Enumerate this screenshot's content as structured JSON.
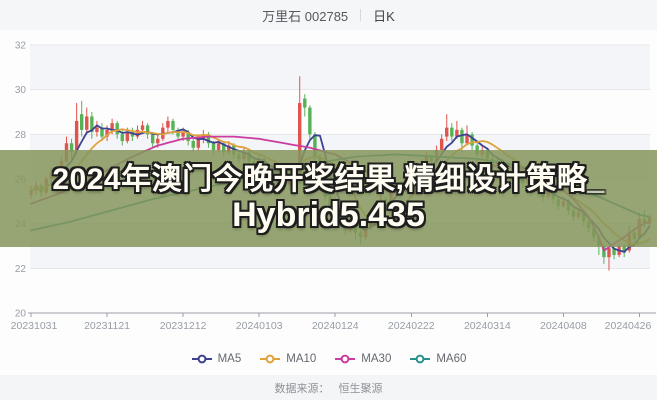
{
  "header": {
    "title": "万里石 002785",
    "period": "日K"
  },
  "overlay": {
    "line1": "2024年澳门今晚开奖结果,精细设计策略_",
    "line2": "Hybrid5.435",
    "band_color": "rgba(133,150,92,0.86)",
    "text_color": "#fffdf2",
    "outline_color": "#1e1e1e"
  },
  "footer": {
    "label": "数据来源：",
    "value": "恒生聚源"
  },
  "legend": {
    "items": [
      {
        "label": "MA5",
        "color": "#3c4191"
      },
      {
        "label": "MA10",
        "color": "#e1a23c"
      },
      {
        "label": "MA30",
        "color": "#cb3c9e"
      },
      {
        "label": "MA60",
        "color": "#27918c"
      }
    ]
  },
  "chart_data": {
    "type": "candlestick",
    "title": "万里石 002785 日K",
    "ylim": [
      20,
      32
    ],
    "y_ticks": [
      32,
      30,
      28,
      26,
      24,
      22,
      20
    ],
    "x_tick_labels": [
      "20231031",
      "20231121",
      "20231212",
      "20240103",
      "20240124",
      "20240222",
      "20240314",
      "20240408",
      "20240426"
    ],
    "x_tick_indices": [
      0,
      15,
      30,
      45,
      60,
      75,
      90,
      105,
      120
    ],
    "grid": true,
    "legend_position": "bottom",
    "colors": {
      "up": "#e0544e",
      "down": "#57b257",
      "grid": "#e4e7ea",
      "axis": "#9aa0a6",
      "label": "#979da5",
      "zebra": "#f3f5f8"
    },
    "candles_ohlc": [
      [
        25.3,
        25.7,
        25.1,
        25.5
      ],
      [
        25.5,
        25.9,
        25.3,
        25.7
      ],
      [
        25.7,
        25.8,
        25.2,
        25.4
      ],
      [
        25.4,
        26.1,
        25.3,
        26.0
      ],
      [
        26.0,
        26.5,
        25.8,
        26.3
      ],
      [
        26.3,
        26.4,
        25.9,
        26.1
      ],
      [
        26.1,
        27.0,
        26.0,
        26.8
      ],
      [
        26.8,
        27.9,
        26.7,
        27.6
      ],
      [
        27.6,
        27.8,
        26.9,
        27.2
      ],
      [
        27.3,
        29.4,
        27.1,
        28.6
      ],
      [
        28.9,
        29.5,
        27.9,
        28.2
      ],
      [
        28.2,
        29.2,
        28.0,
        28.8
      ],
      [
        28.8,
        29.0,
        27.8,
        28.1
      ],
      [
        28.1,
        28.6,
        27.9,
        28.3
      ],
      [
        28.3,
        28.5,
        27.7,
        27.9
      ],
      [
        27.9,
        28.4,
        27.7,
        28.2
      ],
      [
        28.2,
        28.7,
        28.0,
        28.5
      ],
      [
        28.5,
        28.6,
        27.8,
        28.0
      ],
      [
        28.0,
        28.2,
        27.5,
        27.7
      ],
      [
        27.7,
        28.3,
        27.6,
        28.1
      ],
      [
        28.1,
        28.3,
        27.7,
        27.9
      ],
      [
        27.9,
        28.4,
        27.8,
        28.2
      ],
      [
        28.2,
        28.6,
        28.0,
        28.4
      ],
      [
        28.4,
        28.5,
        27.8,
        28.0
      ],
      [
        28.0,
        28.1,
        27.4,
        27.6
      ],
      [
        27.6,
        28.0,
        27.4,
        27.8
      ],
      [
        27.8,
        28.5,
        27.7,
        28.3
      ],
      [
        28.3,
        28.8,
        28.1,
        28.6
      ],
      [
        28.6,
        28.7,
        28.0,
        28.2
      ],
      [
        28.2,
        28.3,
        27.7,
        27.9
      ],
      [
        27.9,
        28.3,
        27.7,
        28.1
      ],
      [
        28.1,
        28.2,
        27.5,
        27.7
      ],
      [
        27.7,
        27.8,
        27.2,
        27.4
      ],
      [
        27.4,
        28.0,
        27.3,
        27.8
      ],
      [
        27.8,
        28.2,
        27.6,
        28.0
      ],
      [
        28.0,
        28.1,
        27.4,
        27.6
      ],
      [
        27.6,
        27.7,
        27.1,
        27.3
      ],
      [
        27.3,
        27.8,
        27.2,
        27.6
      ],
      [
        27.6,
        27.7,
        27.0,
        27.2
      ],
      [
        27.2,
        27.7,
        27.1,
        27.5
      ],
      [
        27.5,
        27.6,
        26.9,
        27.1
      ],
      [
        27.1,
        27.3,
        26.7,
        26.9
      ],
      [
        26.9,
        27.4,
        26.8,
        27.2
      ],
      [
        27.2,
        27.3,
        26.6,
        26.8
      ],
      [
        26.8,
        26.9,
        26.4,
        26.6
      ],
      [
        26.6,
        27.1,
        26.5,
        26.9
      ],
      [
        26.9,
        27.0,
        26.3,
        26.5
      ],
      [
        26.5,
        26.6,
        26.0,
        26.2
      ],
      [
        26.2,
        26.6,
        26.1,
        26.4
      ],
      [
        26.4,
        26.5,
        25.8,
        26.0
      ],
      [
        26.0,
        26.1,
        25.5,
        25.7
      ],
      [
        25.7,
        26.1,
        25.5,
        25.9
      ],
      [
        25.9,
        26.4,
        25.7,
        26.2
      ],
      [
        26.3,
        30.6,
        26.1,
        29.4
      ],
      [
        29.6,
        29.8,
        28.8,
        29.2
      ],
      [
        29.2,
        29.3,
        27.8,
        28.0
      ],
      [
        28.0,
        28.1,
        26.8,
        27.0
      ],
      [
        27.0,
        27.1,
        25.9,
        26.1
      ],
      [
        26.1,
        26.2,
        25.0,
        25.2
      ],
      [
        25.2,
        25.4,
        24.3,
        24.6
      ],
      [
        24.6,
        25.2,
        24.4,
        24.9
      ],
      [
        24.9,
        25.0,
        24.0,
        24.2
      ],
      [
        24.2,
        24.3,
        23.5,
        23.8
      ],
      [
        23.8,
        24.3,
        23.6,
        24.1
      ],
      [
        24.1,
        24.2,
        23.3,
        23.6
      ],
      [
        23.6,
        23.7,
        23.1,
        23.4
      ],
      [
        23.4,
        24.0,
        23.3,
        23.8
      ],
      [
        23.8,
        24.5,
        23.7,
        24.3
      ],
      [
        24.3,
        25.0,
        24.2,
        24.8
      ],
      [
        24.8,
        25.3,
        24.6,
        25.1
      ],
      [
        25.1,
        25.2,
        24.7,
        25.0
      ],
      [
        25.0,
        25.6,
        24.9,
        25.4
      ],
      [
        25.4,
        26.0,
        25.3,
        25.8
      ],
      [
        25.8,
        25.9,
        25.4,
        25.6
      ],
      [
        25.6,
        26.3,
        25.5,
        26.1
      ],
      [
        26.1,
        26.6,
        26.0,
        26.4
      ],
      [
        26.4,
        26.5,
        26.0,
        26.2
      ],
      [
        26.2,
        26.9,
        26.1,
        26.7
      ],
      [
        26.7,
        27.2,
        26.6,
        27.0
      ],
      [
        27.0,
        27.1,
        26.6,
        26.8
      ],
      [
        26.8,
        27.5,
        26.7,
        27.3
      ],
      [
        27.3,
        28.0,
        27.2,
        27.8
      ],
      [
        27.9,
        28.9,
        27.7,
        28.3
      ],
      [
        28.3,
        28.5,
        27.7,
        27.9
      ],
      [
        27.9,
        28.6,
        27.8,
        28.2
      ],
      [
        28.2,
        28.3,
        27.2,
        27.6
      ],
      [
        27.6,
        28.4,
        27.5,
        28.0
      ],
      [
        28.0,
        28.1,
        27.3,
        27.5
      ],
      [
        27.5,
        27.6,
        26.8,
        27.1
      ],
      [
        27.1,
        27.5,
        26.9,
        27.3
      ],
      [
        27.3,
        27.4,
        26.6,
        26.9
      ],
      [
        26.9,
        27.0,
        26.4,
        26.6
      ],
      [
        26.6,
        27.0,
        26.5,
        26.8
      ],
      [
        26.8,
        26.9,
        26.2,
        26.4
      ],
      [
        26.4,
        26.5,
        26.0,
        26.2
      ],
      [
        26.2,
        26.7,
        26.1,
        26.5
      ],
      [
        26.5,
        26.6,
        25.9,
        26.1
      ],
      [
        26.1,
        26.2,
        25.6,
        25.8
      ],
      [
        25.8,
        26.2,
        25.7,
        26.0
      ],
      [
        26.0,
        26.1,
        25.4,
        25.6
      ],
      [
        25.6,
        25.7,
        25.2,
        25.4
      ],
      [
        25.4,
        25.5,
        25.0,
        25.2
      ],
      [
        25.2,
        25.7,
        25.1,
        25.5
      ],
      [
        25.5,
        25.6,
        24.9,
        25.1
      ],
      [
        25.1,
        25.2,
        24.6,
        24.8
      ],
      [
        24.8,
        25.2,
        24.7,
        25.0
      ],
      [
        25.0,
        25.1,
        24.4,
        24.6
      ],
      [
        24.6,
        24.7,
        24.1,
        24.3
      ],
      [
        24.3,
        24.7,
        24.2,
        24.5
      ],
      [
        24.5,
        24.6,
        23.9,
        24.1
      ],
      [
        24.1,
        24.2,
        23.6,
        23.8
      ],
      [
        23.8,
        23.9,
        23.2,
        23.4
      ],
      [
        23.4,
        23.5,
        22.6,
        23.0
      ],
      [
        23.0,
        23.1,
        22.2,
        22.5
      ],
      [
        22.5,
        23.0,
        21.9,
        22.9
      ],
      [
        22.9,
        23.0,
        22.4,
        22.6
      ],
      [
        22.6,
        23.1,
        22.5,
        23.0
      ],
      [
        23.0,
        23.1,
        22.5,
        22.7
      ],
      [
        22.8,
        23.9,
        22.7,
        23.6
      ],
      [
        23.6,
        23.7,
        23.1,
        23.3
      ],
      [
        23.4,
        24.5,
        23.3,
        24.2
      ],
      [
        24.2,
        24.6,
        23.8,
        24.0
      ],
      [
        24.0,
        24.4,
        23.9,
        24.3
      ]
    ],
    "ma_series": [
      {
        "name": "MA5",
        "color": "#3c4191",
        "window": 5
      },
      {
        "name": "MA10",
        "color": "#e1a23c",
        "window": 10
      },
      {
        "name": "MA30",
        "color": "#cb3c9e",
        "anchor_points": [
          [
            0,
            24.9
          ],
          [
            5,
            25.3
          ],
          [
            10,
            25.8
          ],
          [
            15,
            26.4
          ],
          [
            20,
            27.0
          ],
          [
            25,
            27.5
          ],
          [
            30,
            27.8
          ],
          [
            35,
            27.9
          ],
          [
            40,
            27.9
          ],
          [
            45,
            27.8
          ],
          [
            50,
            27.6
          ],
          [
            55,
            27.4
          ],
          [
            60,
            27.1
          ],
          [
            64,
            26.6
          ],
          [
            68,
            26.1
          ],
          [
            72,
            25.6
          ],
          [
            76,
            25.3
          ],
          [
            80,
            25.4
          ],
          [
            84,
            25.9
          ],
          [
            88,
            26.4
          ],
          [
            92,
            26.6
          ],
          [
            96,
            26.5
          ],
          [
            100,
            26.2
          ],
          [
            104,
            25.7
          ],
          [
            107,
            25.1
          ],
          [
            110,
            24.3
          ],
          [
            112,
            23.4
          ],
          [
            113,
            22.8
          ],
          [
            115,
            23.1
          ],
          [
            117,
            23.4
          ],
          [
            120,
            23.9
          ],
          [
            122,
            24.1
          ]
        ]
      },
      {
        "name": "MA60",
        "color": "#27918c",
        "anchor_points": [
          [
            0,
            23.7
          ],
          [
            8,
            24.1
          ],
          [
            16,
            24.6
          ],
          [
            24,
            25.1
          ],
          [
            32,
            25.5
          ],
          [
            40,
            25.9
          ],
          [
            48,
            26.3
          ],
          [
            56,
            26.7
          ],
          [
            64,
            27.0
          ],
          [
            72,
            27.1
          ],
          [
            80,
            27.0
          ],
          [
            88,
            26.9
          ],
          [
            94,
            26.7
          ],
          [
            100,
            26.3
          ],
          [
            104,
            26.0
          ],
          [
            108,
            25.6
          ],
          [
            112,
            25.2
          ],
          [
            116,
            24.8
          ],
          [
            120,
            24.4
          ],
          [
            122,
            24.3
          ]
        ]
      }
    ]
  }
}
